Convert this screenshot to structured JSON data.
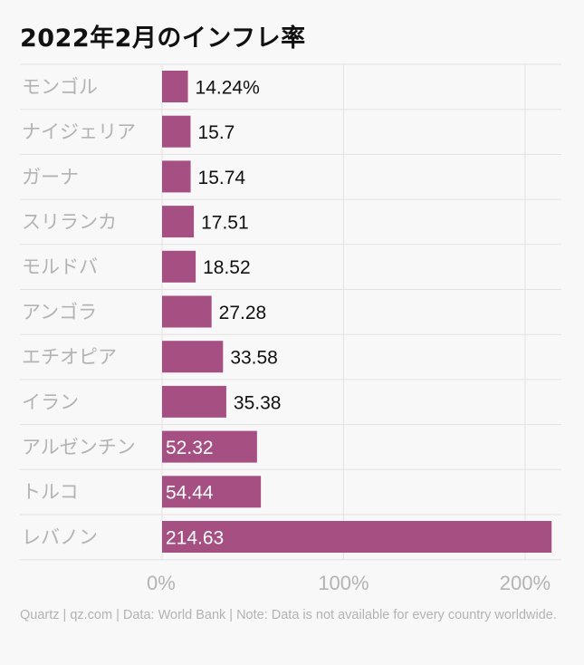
{
  "title": "2022年2月のインフレ率",
  "footer": "Quartz | qz.com | Data: World Bank | Note: Data is not available for every country worldwide.",
  "colors": {
    "bar": "#a54f83",
    "grid": "#e2e2e2",
    "category_text": "#b3b3b3",
    "value_text_outside": "#111111",
    "value_text_inside": "#ffffff",
    "tick_text": "#b3b3b3"
  },
  "chart_data": {
    "type": "bar",
    "orientation": "horizontal",
    "title": "2022年2月のインフレ率",
    "categories": [
      "モンゴル",
      "ナイジェリア",
      "ガーナ",
      "スリランカ",
      "モルドバ",
      "アンゴラ",
      "エチオピア",
      "イラン",
      "アルゼンチン",
      "トルコ",
      "レバノン"
    ],
    "values": [
      14.24,
      15.7,
      15.74,
      17.51,
      18.52,
      27.28,
      33.58,
      35.38,
      52.32,
      54.44,
      214.63
    ],
    "value_labels": [
      "14.24%",
      "15.7",
      "15.74",
      "17.51",
      "18.52",
      "27.28",
      "33.58",
      "35.38",
      "52.32",
      "54.44",
      "214.63"
    ],
    "x_ticks": [
      0,
      100,
      200
    ],
    "x_tick_labels": [
      "0%",
      "100%",
      "200%"
    ],
    "xlim": [
      0,
      220
    ],
    "unit": "%",
    "grid": true
  }
}
